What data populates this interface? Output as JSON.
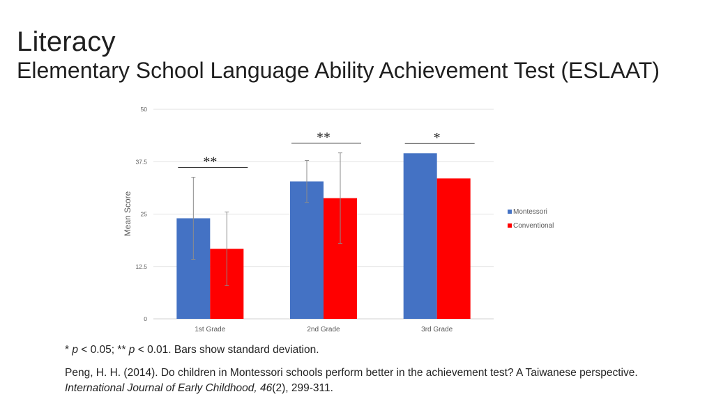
{
  "slide": {
    "title": "Literacy",
    "subtitle": "Elementary School Language Ability Achievement Test (ESLAAT)",
    "note": {
      "star1": "* ",
      "p1": "p",
      "rest1": " < 0.05; ** ",
      "p2": "p",
      "rest2": " < 0.01. Bars show standard deviation."
    },
    "citation": {
      "text1": "Peng, H. H. (2014). Do children in Montessori schools perform better in the achievement test? A Taiwanese perspective. ",
      "journal": "International Journal of Early Childhood, 46",
      "text2": "(2), 299-311."
    }
  },
  "chart_data": {
    "type": "bar",
    "ylabel": "Mean Score",
    "xlabel": "",
    "ylim": [
      0,
      50
    ],
    "yticks": [
      0,
      12.5,
      25,
      37.5,
      50
    ],
    "ytick_labels": [
      "0",
      "12.5",
      "25",
      "37.5",
      "50"
    ],
    "grid": true,
    "legend_position": "right",
    "categories": [
      "1st Grade",
      "2nd Grade",
      "3rd Grade"
    ],
    "series": [
      {
        "name": "Montessori",
        "color": "#4472C4",
        "values": [
          24.0,
          32.8,
          39.5
        ],
        "sd": [
          9.8,
          5.0,
          null
        ]
      },
      {
        "name": "Conventional",
        "color": "#FF0000",
        "values": [
          16.7,
          28.8,
          33.5
        ],
        "sd": [
          8.8,
          10.8,
          null
        ]
      }
    ],
    "significance": [
      "**",
      "**",
      "*"
    ]
  }
}
